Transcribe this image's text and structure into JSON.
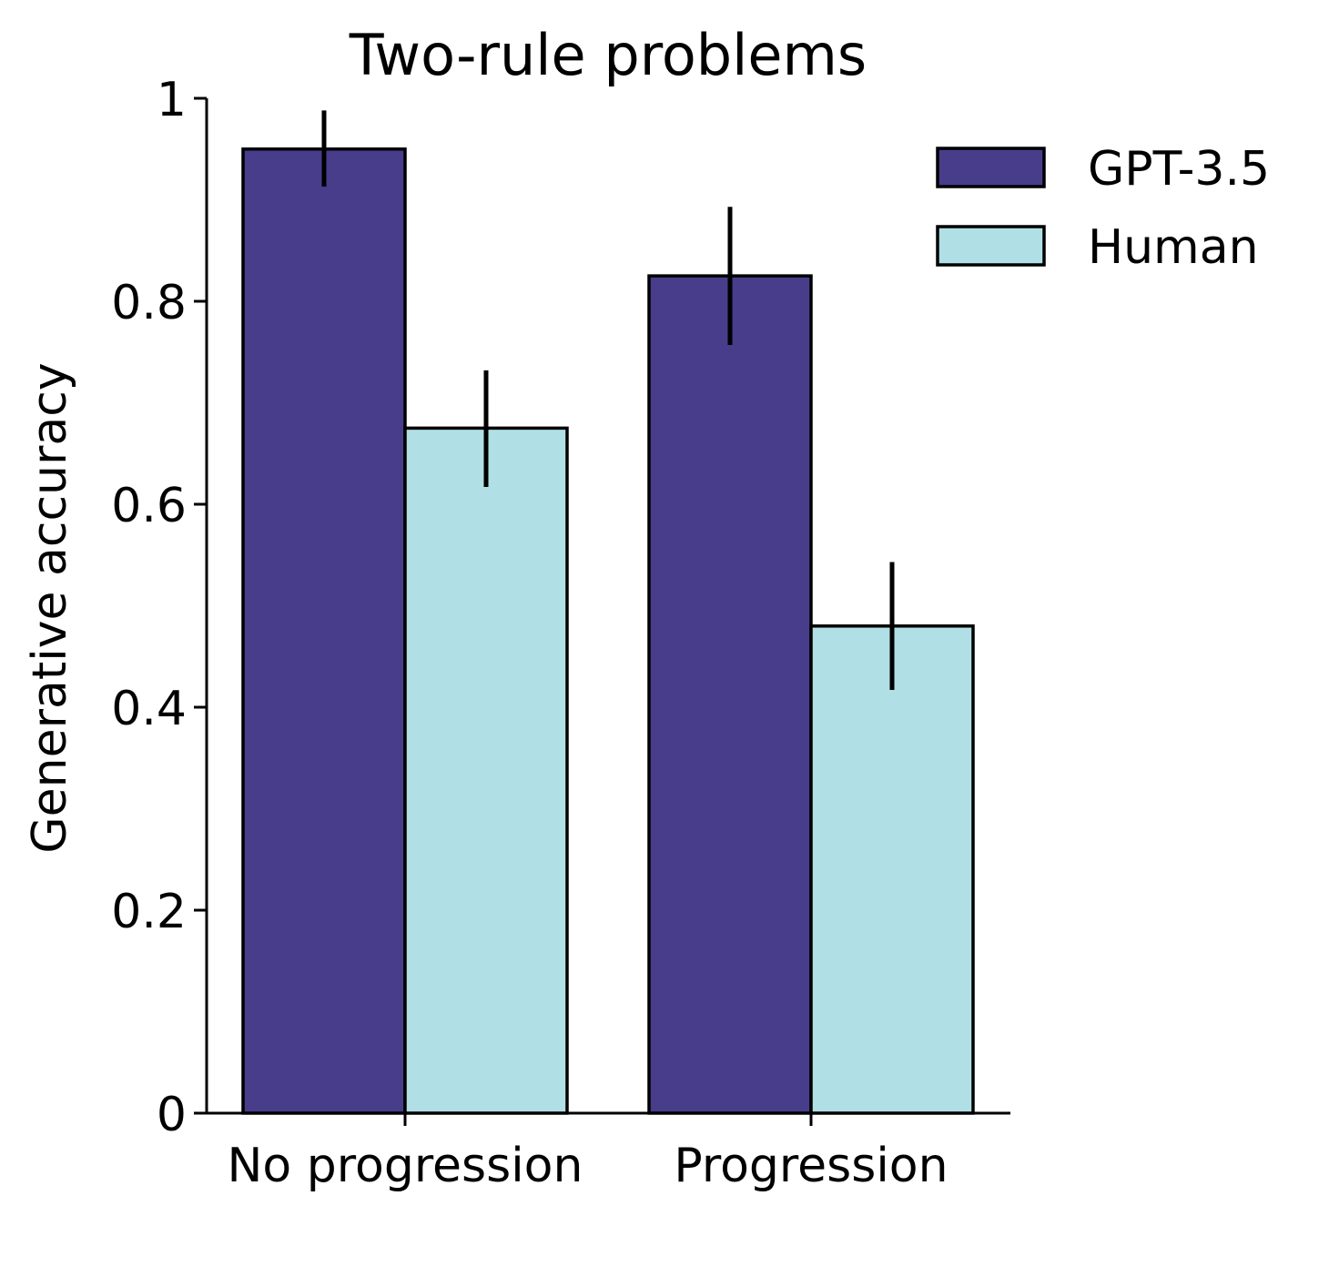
{
  "chart_data": {
    "type": "bar",
    "title": "Two-rule problems",
    "xlabel": "",
    "ylabel": "Generative accuracy",
    "categories": [
      "No progression",
      "Progression"
    ],
    "ylim": [
      0,
      1
    ],
    "yticks": [
      0,
      0.2,
      0.4,
      0.6,
      0.8,
      1
    ],
    "ytick_labels": [
      "0",
      "0.2",
      "0.4",
      "0.6",
      "0.8",
      "1"
    ],
    "series": [
      {
        "name": "GPT-3.5",
        "color": "#483D8B",
        "values": [
          0.95,
          0.825
        ],
        "error_low": [
          0.913,
          0.757
        ],
        "error_high": [
          0.988,
          0.893
        ]
      },
      {
        "name": "Human",
        "color": "#B0DFE5",
        "values": [
          0.675,
          0.48
        ],
        "error_low": [
          0.617,
          0.417
        ],
        "error_high": [
          0.732,
          0.543
        ]
      }
    ],
    "grid": false,
    "legend_position": "top-right"
  }
}
